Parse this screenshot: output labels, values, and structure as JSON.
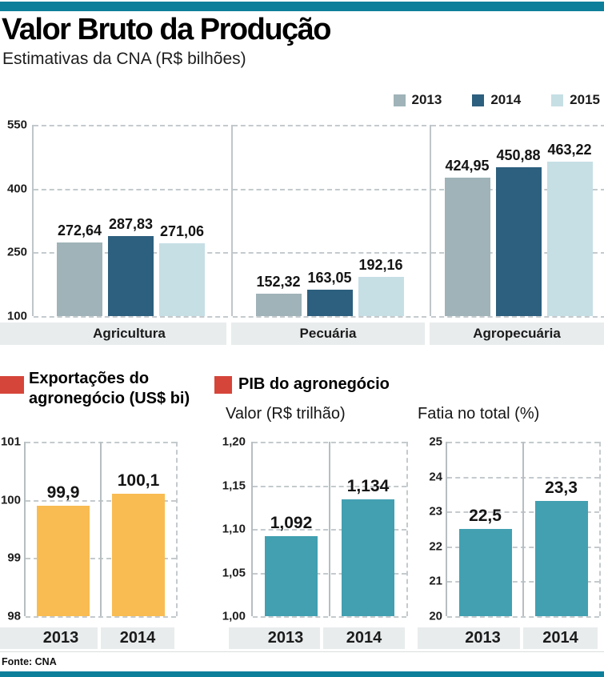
{
  "page": {
    "title": "Valor Bruto da Produção",
    "subtitle": "Estimativas da CNA (R$ bilhões)",
    "source": "Fonte: CNA"
  },
  "colors": {
    "accent_teal": "#0e7f9b",
    "red_marker": "#d6453a",
    "band_gray": "#e8eced",
    "series_2013": "#9fb3b8",
    "series_2014": "#2d5f7e",
    "series_2015": "#c6dfe5",
    "orange_bar": "#f9bc52",
    "teal_bar": "#42a0b1"
  },
  "legend": {
    "items": [
      {
        "label": "2013",
        "color": "#9fb3b8"
      },
      {
        "label": "2014",
        "color": "#2d5f7e"
      },
      {
        "label": "2015",
        "color": "#c6dfe5"
      }
    ]
  },
  "chart_data": [
    {
      "type": "bar",
      "title": "Valor Bruto da Produção",
      "subtitle": "Estimativas da CNA (R$ bilhões)",
      "unit": "R$ bilhões",
      "grid": "dashed horizontal",
      "legend_position": "top-right",
      "categories": [
        "Agricultura",
        "Pecuária",
        "Agropecuária"
      ],
      "series": [
        {
          "name": "2013",
          "color": "#9fb3b8",
          "values": [
            272.64,
            152.32,
            424.95
          ]
        },
        {
          "name": "2014",
          "color": "#2d5f7e",
          "values": [
            287.83,
            163.05,
            450.88
          ]
        },
        {
          "name": "2015",
          "color": "#c6dfe5",
          "values": [
            271.06,
            192.16,
            463.22
          ]
        }
      ],
      "value_labels": [
        [
          "272,64",
          "287,83",
          "271,06"
        ],
        [
          "152,32",
          "163,05",
          "192,16"
        ],
        [
          "424,95",
          "450,88",
          "463,22"
        ]
      ],
      "ylim": [
        100,
        550
      ],
      "yticks": [
        "550",
        "400",
        "250",
        "100"
      ]
    },
    {
      "type": "bar",
      "title": "Exportações do agronegócio (US$ bi)",
      "categories": [
        "2013",
        "2014"
      ],
      "values": [
        99.9,
        100.1
      ],
      "value_labels": [
        "99,9",
        "100,1"
      ],
      "bar_color": "#f9bc52",
      "ylim": [
        98,
        101
      ],
      "yticks": [
        "101",
        "100",
        "99",
        "98"
      ],
      "grid": "dashed horizontal"
    },
    {
      "type": "bar",
      "group_title": "PIB do agronegócio",
      "title": "Valor (R$ trilhão)",
      "categories": [
        "2013",
        "2014"
      ],
      "values": [
        1.092,
        1.134
      ],
      "value_labels": [
        "1,092",
        "1,134"
      ],
      "bar_color": "#42a0b1",
      "ylim": [
        1.0,
        1.2
      ],
      "yticks": [
        "1,20",
        "1,15",
        "1,10",
        "1,05",
        "1,00"
      ],
      "grid": "dashed horizontal"
    },
    {
      "type": "bar",
      "group_title": "PIB do agronegócio",
      "title": "Fatia no total (%)",
      "categories": [
        "2013",
        "2014"
      ],
      "values": [
        22.5,
        23.3
      ],
      "value_labels": [
        "22,5",
        "23,3"
      ],
      "bar_color": "#42a0b1",
      "ylim": [
        20,
        25
      ],
      "yticks": [
        "25",
        "24",
        "23",
        "22",
        "21",
        "20"
      ],
      "grid": "dashed horizontal"
    }
  ]
}
